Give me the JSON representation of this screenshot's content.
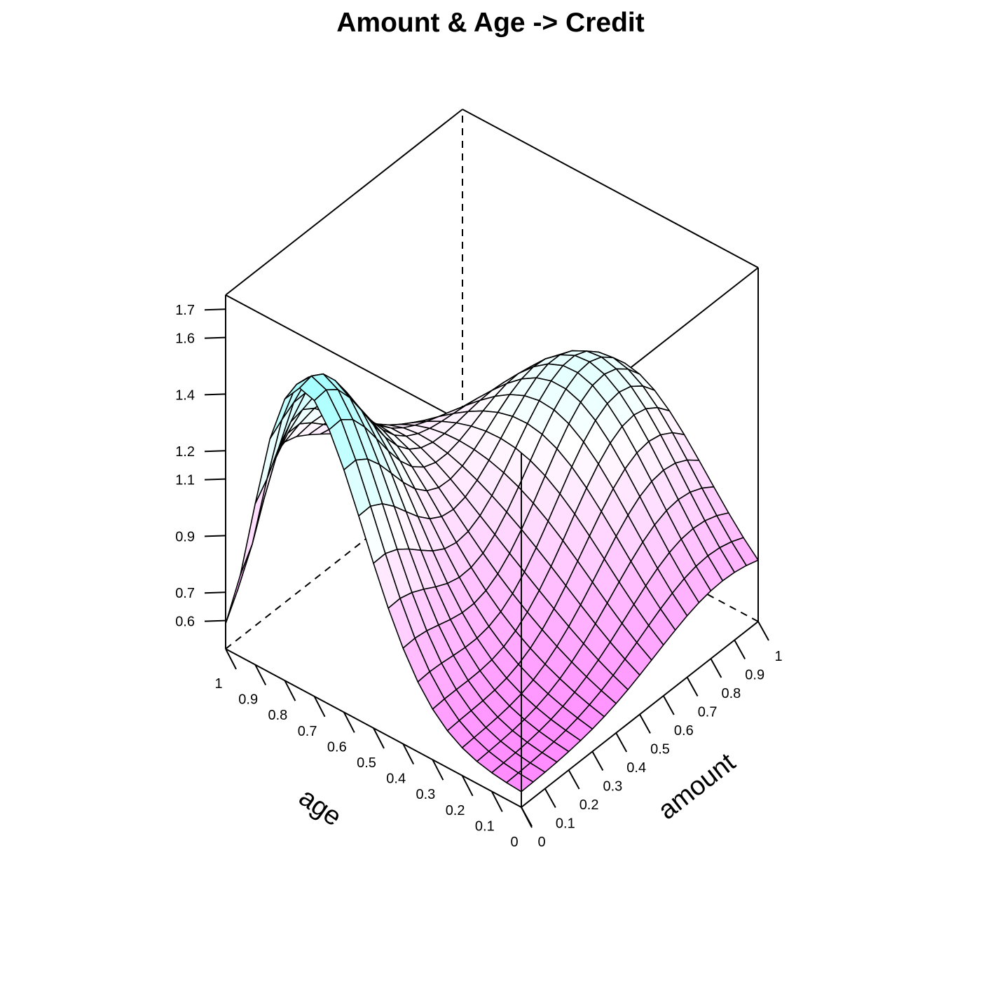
{
  "chart_data": {
    "type": "surface3d",
    "title": "Amount & Age -> Credit",
    "xlabel": "amount",
    "ylabel": "age",
    "zlabel": "",
    "x_ticks": [
      "0",
      "0.1",
      "0.2",
      "0.3",
      "0.4",
      "0.5",
      "0.6",
      "0.7",
      "0.8",
      "0.9",
      "1"
    ],
    "y_ticks": [
      "0",
      "0.1",
      "0.2",
      "0.3",
      "0.4",
      "0.5",
      "0.6",
      "0.7",
      "0.8",
      "0.9",
      "1"
    ],
    "z_ticks": [
      {
        "value": 0.6,
        "label": "0.6"
      },
      {
        "value": 0.7,
        "label": "0.7"
      },
      {
        "value": 0.9,
        "label": "0.9"
      },
      {
        "value": 1.1,
        "label": "1.1"
      },
      {
        "value": 1.2,
        "label": "1.2"
      },
      {
        "value": 1.4,
        "label": "1.4"
      },
      {
        "value": 1.6,
        "label": "1.6"
      },
      {
        "value": 1.7,
        "label": "1.7"
      }
    ],
    "xlim": [
      0,
      1
    ],
    "ylim": [
      0,
      1
    ],
    "zlim": [
      0.5,
      1.75
    ],
    "grid_size": 21,
    "colors": {
      "low": "#ff80ff",
      "mid": "#ffffff",
      "high": "#80ffff"
    },
    "surface": {
      "description": "smooth density-like surface; high ridge near amount=0, age~0.7-0.8 (≈1.72) and secondary ridge near amount~0.9, age~0.4 (≈1.55); trough near amount~0-0.1, age~0-0.2 (≈0.9); minimum ≈0.5 at amount=0, age=1",
      "peaks": [
        {
          "amount": 0.0,
          "age": 0.75,
          "height": 0.95,
          "spread": 0.22
        },
        {
          "amount": 0.85,
          "age": 0.45,
          "height": 0.7,
          "spread": 0.28
        },
        {
          "amount": 0.4,
          "age": 0.9,
          "height": 0.35,
          "spread": 0.25
        }
      ],
      "base": 0.55,
      "dips": [
        {
          "amount": 0.0,
          "age": 1.0,
          "depth": 0.55,
          "spread": 0.1
        },
        {
          "amount": 0.0,
          "age": 0.05,
          "depth": 0.0,
          "spread": 0.2
        }
      ]
    }
  }
}
